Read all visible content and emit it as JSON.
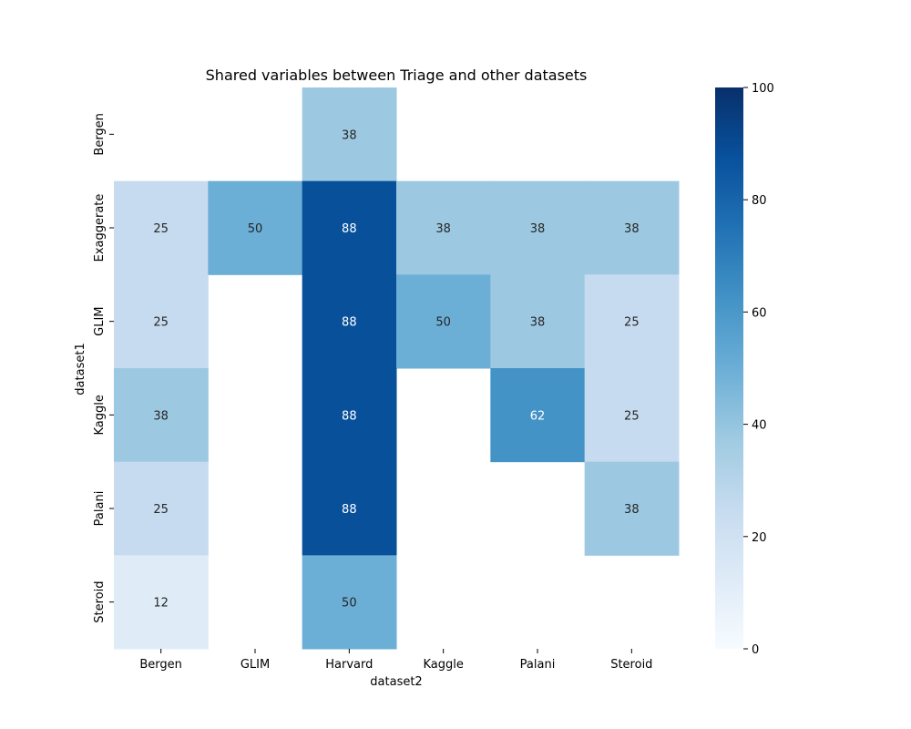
{
  "chart_data": {
    "type": "heatmap",
    "title": "Shared variables between Triage and other datasets",
    "xlabel": "dataset2",
    "ylabel": "dataset1",
    "x_categories": [
      "Bergen",
      "GLIM",
      "Harvard",
      "Kaggle",
      "Palani",
      "Steroid"
    ],
    "y_categories": [
      "Bergen",
      "Exaggerate",
      "GLIM",
      "Kaggle",
      "Palani",
      "Steroid"
    ],
    "values": [
      [
        null,
        null,
        38,
        null,
        null,
        null
      ],
      [
        25,
        50,
        88,
        38,
        38,
        38
      ],
      [
        25,
        null,
        88,
        50,
        38,
        25
      ],
      [
        38,
        null,
        88,
        null,
        62,
        25
      ],
      [
        25,
        null,
        88,
        null,
        null,
        38
      ],
      [
        12,
        null,
        50,
        null,
        null,
        null
      ]
    ],
    "colorbar": {
      "min": 0,
      "max": 100,
      "ticks": [
        "0",
        "20",
        "40",
        "60",
        "80",
        "100"
      ],
      "colormap": "Blues"
    },
    "grid": false,
    "legend": "colorbar-right"
  }
}
